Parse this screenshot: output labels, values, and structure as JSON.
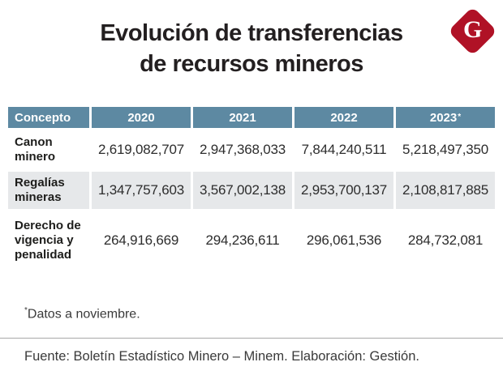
{
  "header": {
    "title_lines": [
      "Evolución de transferencias",
      "de recursos mineros"
    ],
    "logo_letter": "G"
  },
  "table": {
    "columns": [
      "Concepto",
      "2020",
      "2021",
      "2022",
      "2023"
    ],
    "asterisk": "*",
    "rows": [
      {
        "label": "Canon minero",
        "values": [
          "2,619,082,707",
          "2,947,368,033",
          "7,844,240,511",
          "5,218,497,350"
        ]
      },
      {
        "label": "Regalías mineras",
        "values": [
          "1,347,757,603",
          "3,567,002,138",
          "2,953,700,137",
          "2,108,817,885"
        ]
      },
      {
        "label": "Derecho de vigencia y penalidad",
        "values": [
          "264,916,669",
          "294,236,611",
          "296,061,536",
          "284,732,081"
        ]
      }
    ]
  },
  "notes": {
    "marker": "*",
    "text": "Datos a noviembre."
  },
  "footer": {
    "source": "Fuente: Boletín Estadístico Minero – Minem. Elaboración: Gestión."
  },
  "colors": {
    "header_bg": "#5d89a2",
    "row_alt_bg": "#e6e8ea",
    "logo_red": "#b01226",
    "title_text": "#231f20"
  },
  "chart_data": {
    "type": "table",
    "title": "Evolución de transferencias de recursos mineros",
    "categories": [
      "2020",
      "2021",
      "2022",
      "2023*"
    ],
    "series": [
      {
        "name": "Canon minero",
        "values": [
          2619082707,
          2947368033,
          7844240511,
          5218497350
        ]
      },
      {
        "name": "Regalías mineras",
        "values": [
          1347757603,
          3567002138,
          2953700137,
          2108817885
        ]
      },
      {
        "name": "Derecho de vigencia y penalidad",
        "values": [
          264916669,
          294236611,
          296061536,
          284732081
        ]
      }
    ],
    "footnote": "*Datos a noviembre.",
    "source": "Fuente: Boletín Estadístico Minero – Minem. Elaboración: Gestión."
  }
}
